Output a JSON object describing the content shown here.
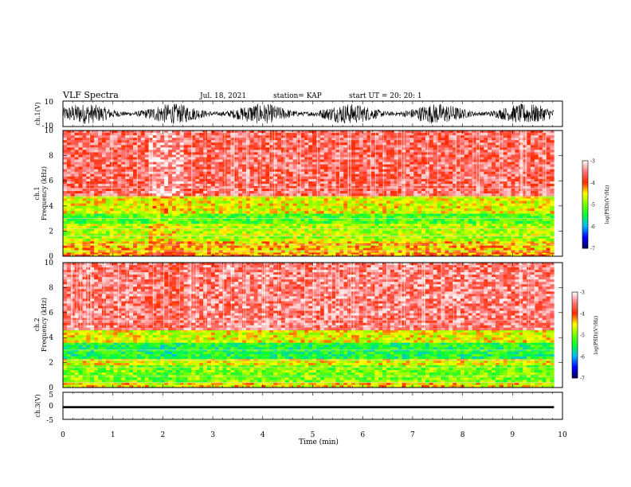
{
  "header": {
    "title": "VLF Spectra",
    "date": "Jul. 18, 2021",
    "station": "station= KAP",
    "start": "start  UT  =    20: 20: 1"
  },
  "chart_data": [
    {
      "type": "line",
      "name": "ch1-waveform",
      "ylabel": "ch.1(V)",
      "yticks": [
        "10",
        "-10"
      ],
      "ylim": [
        -10,
        10
      ],
      "xlim": [
        0,
        10
      ],
      "x_end": 9.83,
      "description_level": "dense noisy signal spanning roughly -8 to +8 V"
    },
    {
      "type": "heatmap",
      "name": "ch1-spectrogram",
      "ylabel": "ch.1\nFrequency  (kHz)",
      "ylabel_lines": [
        "ch.1",
        "Frequency  (kHz)"
      ],
      "yticks": [
        "0",
        "2",
        "4",
        "6",
        "8",
        "10"
      ],
      "ylim": [
        0,
        10
      ],
      "xlim": [
        0,
        10
      ],
      "x_end": 9.83,
      "colorbar": {
        "label": "log(PSD)(V²/Hz)",
        "ticks": [
          "-3",
          "-4",
          "-5",
          "-6",
          "-7"
        ],
        "range": [
          -7,
          -3
        ]
      },
      "bands": [
        {
          "f": [
            0.0,
            0.3
          ],
          "level": -4.2
        },
        {
          "f": [
            0.3,
            1.2
          ],
          "level": -4.4
        },
        {
          "f": [
            1.2,
            2.6
          ],
          "level": -4.8
        },
        {
          "f": [
            2.6,
            3.4
          ],
          "level": -5.2
        },
        {
          "f": [
            3.4,
            4.8
          ],
          "level": -4.6
        },
        {
          "f": [
            4.8,
            10.0
          ],
          "level": -3.6
        }
      ]
    },
    {
      "type": "heatmap",
      "name": "ch2-spectrogram",
      "ylabel": "ch.2\nFrequency  (kHz)",
      "ylabel_lines": [
        "ch.2",
        "Frequency  (kHz)"
      ],
      "yticks": [
        "0",
        "2",
        "4",
        "6",
        "8",
        "10"
      ],
      "ylim": [
        0,
        10
      ],
      "xlim": [
        0,
        10
      ],
      "x_end": 9.83,
      "colorbar": {
        "label": "log(PSD)(V²/Hz)",
        "ticks": [
          "-3",
          "-4",
          "-5",
          "-6",
          "-7"
        ],
        "range": [
          -7,
          -3
        ]
      },
      "bands": [
        {
          "f": [
            0.0,
            0.4
          ],
          "level": -4.5
        },
        {
          "f": [
            0.4,
            1.8
          ],
          "level": -5.0
        },
        {
          "f": [
            1.8,
            2.3
          ],
          "level": -4.6
        },
        {
          "f": [
            2.3,
            3.6
          ],
          "level": -5.4
        },
        {
          "f": [
            3.6,
            4.6
          ],
          "level": -4.6
        },
        {
          "f": [
            4.6,
            10.0
          ],
          "level": -3.5
        }
      ]
    },
    {
      "type": "line",
      "name": "ch3-waveform",
      "ylabel": "ch.3(V)",
      "yticks": [
        "5",
        "0",
        "-5"
      ],
      "ylim": [
        -5,
        5
      ],
      "xlim": [
        0,
        10
      ],
      "x_end": 9.83,
      "description_level": "thin band near -0.5 V"
    }
  ],
  "xaxis": {
    "label": "Time  (min)",
    "ticks": [
      "0",
      "1",
      "2",
      "3",
      "4",
      "5",
      "6",
      "7",
      "8",
      "9",
      "10"
    ]
  },
  "colors": {
    "spectrum": [
      "#00005a",
      "#0000ff",
      "#00c8ff",
      "#00ff00",
      "#ffff00",
      "#ff0000",
      "#ffffff"
    ]
  }
}
